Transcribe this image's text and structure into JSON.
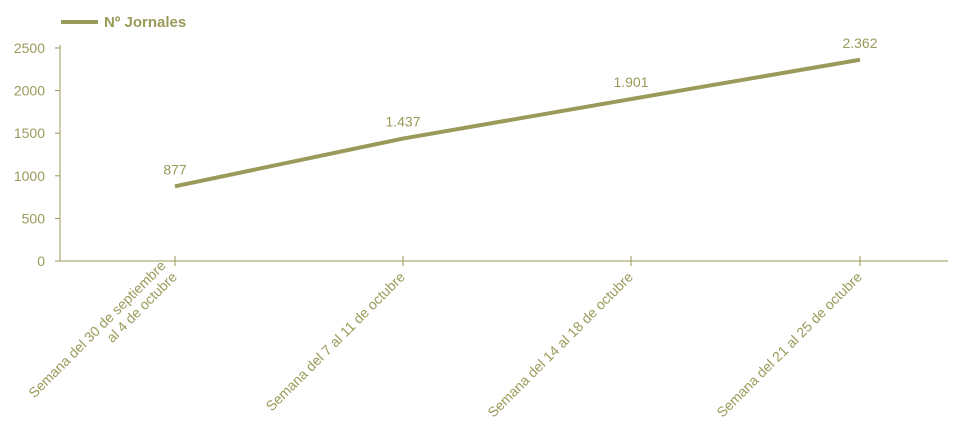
{
  "colors": {
    "series": "#9a9a5a",
    "text": "#9a9a5a",
    "axis": "#9a9a5a"
  },
  "chart_data": {
    "type": "line",
    "title": "",
    "xlabel": "",
    "ylabel": "",
    "categories": [
      [
        "Semana del 30 de septiembre",
        "al 4 de octubre"
      ],
      [
        "Semana del 7 al 11 de octubre"
      ],
      [
        "Semana del 14 al 18 de octubre"
      ],
      [
        "Semana del 21 al 25 de octubre"
      ]
    ],
    "series": [
      {
        "name": "Nº Jornales",
        "values": [
          877,
          1437,
          1901,
          2362
        ],
        "labels": [
          "877",
          "1.437",
          "1.901",
          "2.362"
        ]
      }
    ],
    "ylim": [
      0,
      2500
    ],
    "yticks": [
      0,
      500,
      1000,
      1500,
      2000,
      2500
    ],
    "grid": false,
    "legend": "top-left"
  }
}
